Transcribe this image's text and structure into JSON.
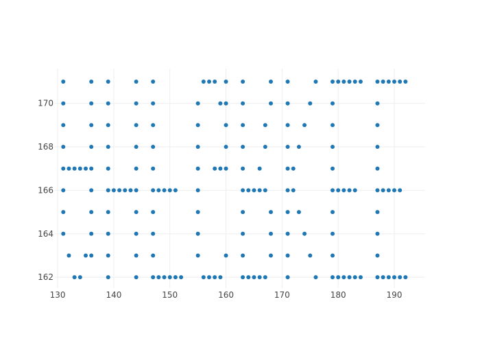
{
  "chart_data": {
    "type": "scatter",
    "title": "",
    "xlabel": "",
    "ylabel": "",
    "xlim": [
      129.5,
      195.5
    ],
    "ylim": [
      161.5,
      171.6
    ],
    "x_ticks": [
      130,
      140,
      150,
      160,
      170,
      180,
      190
    ],
    "y_ticks": [
      162,
      164,
      166,
      168,
      170
    ],
    "grid": true,
    "legend": "none",
    "marker_color": "#1f77b4",
    "series": [
      {
        "points": [
          [
            131,
            171
          ],
          [
            131,
            170
          ],
          [
            131,
            169
          ],
          [
            131,
            168
          ],
          [
            131,
            167
          ],
          [
            131,
            166
          ],
          [
            131,
            165
          ],
          [
            131,
            164
          ],
          [
            132,
            167
          ],
          [
            132,
            163
          ],
          [
            133,
            167
          ],
          [
            133,
            162
          ],
          [
            134,
            167
          ],
          [
            134,
            162
          ],
          [
            135,
            167
          ],
          [
            135,
            163
          ],
          [
            136,
            171
          ],
          [
            136,
            170
          ],
          [
            136,
            169
          ],
          [
            136,
            168
          ],
          [
            136,
            167
          ],
          [
            136,
            166
          ],
          [
            136,
            165
          ],
          [
            136,
            164
          ],
          [
            136,
            163
          ],
          [
            139,
            171
          ],
          [
            139,
            170
          ],
          [
            139,
            169
          ],
          [
            139,
            168
          ],
          [
            139,
            167
          ],
          [
            139,
            166
          ],
          [
            139,
            165
          ],
          [
            139,
            164
          ],
          [
            139,
            163
          ],
          [
            139,
            162
          ],
          [
            140,
            166
          ],
          [
            141,
            166
          ],
          [
            142,
            166
          ],
          [
            143,
            166
          ],
          [
            144,
            171
          ],
          [
            144,
            170
          ],
          [
            144,
            169
          ],
          [
            144,
            168
          ],
          [
            144,
            167
          ],
          [
            144,
            166
          ],
          [
            144,
            165
          ],
          [
            144,
            164
          ],
          [
            144,
            163
          ],
          [
            144,
            162
          ],
          [
            147,
            171
          ],
          [
            147,
            170
          ],
          [
            147,
            169
          ],
          [
            147,
            168
          ],
          [
            147,
            167
          ],
          [
            147,
            166
          ],
          [
            147,
            165
          ],
          [
            147,
            164
          ],
          [
            147,
            163
          ],
          [
            147,
            162
          ],
          [
            148,
            166
          ],
          [
            148,
            162
          ],
          [
            149,
            166
          ],
          [
            149,
            162
          ],
          [
            150,
            166
          ],
          [
            150,
            162
          ],
          [
            151,
            166
          ],
          [
            151,
            162
          ],
          [
            152,
            162
          ],
          [
            155,
            170
          ],
          [
            155,
            169
          ],
          [
            155,
            168
          ],
          [
            155,
            167
          ],
          [
            155,
            166
          ],
          [
            155,
            165
          ],
          [
            155,
            164
          ],
          [
            155,
            163
          ],
          [
            156,
            171
          ],
          [
            156,
            162
          ],
          [
            157,
            171
          ],
          [
            157,
            162
          ],
          [
            158,
            171
          ],
          [
            158,
            167
          ],
          [
            158,
            162
          ],
          [
            159,
            170
          ],
          [
            159,
            167
          ],
          [
            159,
            162
          ],
          [
            160,
            171
          ],
          [
            160,
            170
          ],
          [
            160,
            169
          ],
          [
            160,
            168
          ],
          [
            160,
            167
          ],
          [
            160,
            163
          ],
          [
            163,
            171
          ],
          [
            163,
            170
          ],
          [
            163,
            169
          ],
          [
            163,
            168
          ],
          [
            163,
            167
          ],
          [
            163,
            166
          ],
          [
            163,
            165
          ],
          [
            163,
            164
          ],
          [
            163,
            163
          ],
          [
            163,
            162
          ],
          [
            164,
            166
          ],
          [
            164,
            162
          ],
          [
            165,
            166
          ],
          [
            165,
            162
          ],
          [
            166,
            167
          ],
          [
            166,
            166
          ],
          [
            166,
            162
          ],
          [
            167,
            169
          ],
          [
            167,
            168
          ],
          [
            167,
            166
          ],
          [
            167,
            162
          ],
          [
            168,
            171
          ],
          [
            168,
            170
          ],
          [
            168,
            165
          ],
          [
            168,
            164
          ],
          [
            168,
            163
          ],
          [
            171,
            171
          ],
          [
            171,
            170
          ],
          [
            171,
            169
          ],
          [
            171,
            168
          ],
          [
            171,
            167
          ],
          [
            171,
            166
          ],
          [
            171,
            165
          ],
          [
            171,
            164
          ],
          [
            171,
            163
          ],
          [
            171,
            162
          ],
          [
            172,
            167
          ],
          [
            172,
            166
          ],
          [
            173,
            168
          ],
          [
            173,
            165
          ],
          [
            174,
            169
          ],
          [
            174,
            164
          ],
          [
            175,
            170
          ],
          [
            175,
            163
          ],
          [
            176,
            171
          ],
          [
            176,
            162
          ],
          [
            179,
            171
          ],
          [
            179,
            170
          ],
          [
            179,
            169
          ],
          [
            179,
            168
          ],
          [
            179,
            167
          ],
          [
            179,
            166
          ],
          [
            179,
            165
          ],
          [
            179,
            164
          ],
          [
            179,
            163
          ],
          [
            179,
            162
          ],
          [
            180,
            171
          ],
          [
            180,
            166
          ],
          [
            180,
            162
          ],
          [
            181,
            171
          ],
          [
            181,
            166
          ],
          [
            181,
            162
          ],
          [
            182,
            171
          ],
          [
            182,
            166
          ],
          [
            182,
            162
          ],
          [
            183,
            171
          ],
          [
            183,
            166
          ],
          [
            183,
            162
          ],
          [
            184,
            171
          ],
          [
            184,
            162
          ],
          [
            187,
            171
          ],
          [
            187,
            170
          ],
          [
            187,
            169
          ],
          [
            187,
            168
          ],
          [
            187,
            167
          ],
          [
            187,
            166
          ],
          [
            187,
            165
          ],
          [
            187,
            164
          ],
          [
            187,
            163
          ],
          [
            187,
            162
          ],
          [
            188,
            171
          ],
          [
            188,
            166
          ],
          [
            188,
            162
          ],
          [
            189,
            171
          ],
          [
            189,
            166
          ],
          [
            189,
            162
          ],
          [
            190,
            171
          ],
          [
            190,
            166
          ],
          [
            190,
            162
          ],
          [
            191,
            171
          ],
          [
            191,
            166
          ],
          [
            191,
            162
          ],
          [
            192,
            171
          ],
          [
            192,
            162
          ]
        ]
      }
    ]
  }
}
